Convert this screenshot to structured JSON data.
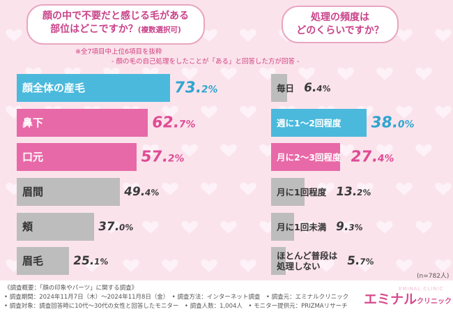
{
  "left_question": {
    "line1": "顔の中で不要だと感じる毛がある",
    "line2": "部位はどこですか？",
    "line2_small": "(複数選択可)"
  },
  "right_question": {
    "line1": "処理の頻度は",
    "line2": "どのくらいですか？"
  },
  "note_top": "※全7項目中上位6項目を抜粋",
  "note_sub": "- 顔の毛の自己処理をしたことが「ある」と回答した方が回答 -",
  "sample_note": "(n=782人)",
  "chart_data": [
    {
      "type": "bar",
      "orientation": "horizontal",
      "title": "顔の中で不要だと感じる毛がある部位はどこですか？(複数選択可)",
      "categories": [
        "顔全体の産毛",
        "鼻下",
        "口元",
        "眉間",
        "頬",
        "眉毛"
      ],
      "values": [
        73.2,
        62.7,
        57.2,
        49.4,
        37.0,
        25.1
      ],
      "value_labels": [
        {
          "int": "73.",
          "dec": "2%"
        },
        {
          "int": "62.",
          "dec": "7%"
        },
        {
          "int": "57.",
          "dec": "2%"
        },
        {
          "int": "49.",
          "dec": "4%"
        },
        {
          "int": "37.",
          "dec": "0%"
        },
        {
          "int": "25.",
          "dec": "1%"
        }
      ],
      "bar_colors": [
        "#4bb9dc",
        "#e869a8",
        "#e869a8",
        "#bdbdbd",
        "#bdbdbd",
        "#bdbdbd"
      ],
      "unit": "%"
    },
    {
      "type": "bar",
      "orientation": "horizontal",
      "title": "処理の頻度はどのくらいですか？",
      "categories": [
        "毎日",
        "週に1～2回程度",
        "月に2～3回程度",
        "月に1回程度",
        "月に1回未満",
        "ほとんど普段は処理しない"
      ],
      "category_lines": [
        [
          "毎日"
        ],
        [
          "週に1～2回程度"
        ],
        [
          "月に2～3回程度"
        ],
        [
          "月に1回程度"
        ],
        [
          "月に1回未満"
        ],
        [
          "ほとんど普段は",
          "処理しない"
        ]
      ],
      "values": [
        6.4,
        38.0,
        27.4,
        13.2,
        9.3,
        5.7
      ],
      "value_labels": [
        {
          "int": "6.",
          "dec": "4%"
        },
        {
          "int": "38.",
          "dec": "0%"
        },
        {
          "int": "27.",
          "dec": "4%"
        },
        {
          "int": "13.",
          "dec": "2%"
        },
        {
          "int": "9.",
          "dec": "3%"
        },
        {
          "int": "5.",
          "dec": "7%"
        }
      ],
      "bar_colors": [
        "#bdbdbd",
        "#4bb9dc",
        "#e869a8",
        "#bdbdbd",
        "#bdbdbd",
        "#bdbdbd"
      ],
      "unit": "%"
    }
  ],
  "footer": {
    "line1": "《調査概要：「顔の印象やパーツ」に関する調査》",
    "line2": "• 調査期間：2024年11月7日（木）～2024年11月8日（金）　• 調査方法：インターネット調査　• 調査元：エミナルクリニック",
    "line3": "• 調査対象：調査回答時に10代～30代の女性と回答したモニター　• 調査人数：1,004人　• モニター提供元：PRIZMAリサーチ"
  },
  "brand": {
    "main": "エミナル",
    "sub": "クリニック",
    "en": "EMINAL CLINIC"
  }
}
